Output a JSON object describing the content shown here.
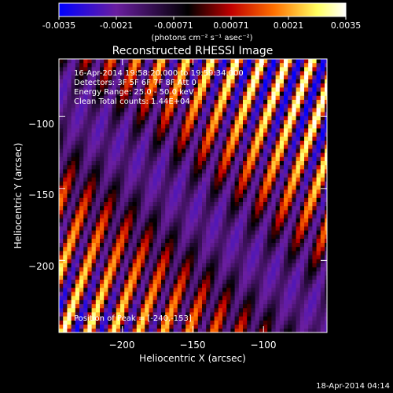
{
  "colorbar": {
    "tick_labels": [
      "-0.0035",
      "-0.0021",
      "-0.00071",
      "0.00071",
      "0.0021",
      "0.0035"
    ],
    "unit_label": "(photons cm⁻² s⁻¹ asec⁻²)",
    "colors": [
      "#0000ff",
      "#6a1ea0",
      "#000000",
      "#c00000",
      "#ff7000",
      "#ffff60",
      "#ffffff"
    ]
  },
  "chart_data": {
    "type": "heatmap",
    "title": "Reconstructed RHESSI Image",
    "xlabel": "Heliocentric X (arcsec)",
    "ylabel": "Heliocentric Y (arcsec)",
    "xlim": [
      -245,
      -55
    ],
    "ylim": [
      -250,
      -60
    ],
    "x_ticks": [
      -200,
      -150,
      -100
    ],
    "y_ticks": [
      -100,
      -150,
      -200
    ],
    "x_tick_labels": [
      "−200",
      "−150",
      "−100"
    ],
    "y_tick_labels": [
      "−100",
      "−150",
      "−200"
    ],
    "value_range": [
      -0.0035,
      0.0035
    ],
    "peak": [
      -240,
      -153
    ],
    "info_lines": [
      "16-Apr-2014 19:58:20.000 to 19:59:34.000",
      "Detectors: 3F 5F 6F 7F 8F Att 0",
      "Energy Range: 25.0 - 50.0 keV",
      "Clean    Total counts: 1.44E+04"
    ],
    "peak_label": "Position of Peak = [-240,-153]"
  },
  "footer": {
    "timestamp": "18-Apr-2014 04:14"
  }
}
